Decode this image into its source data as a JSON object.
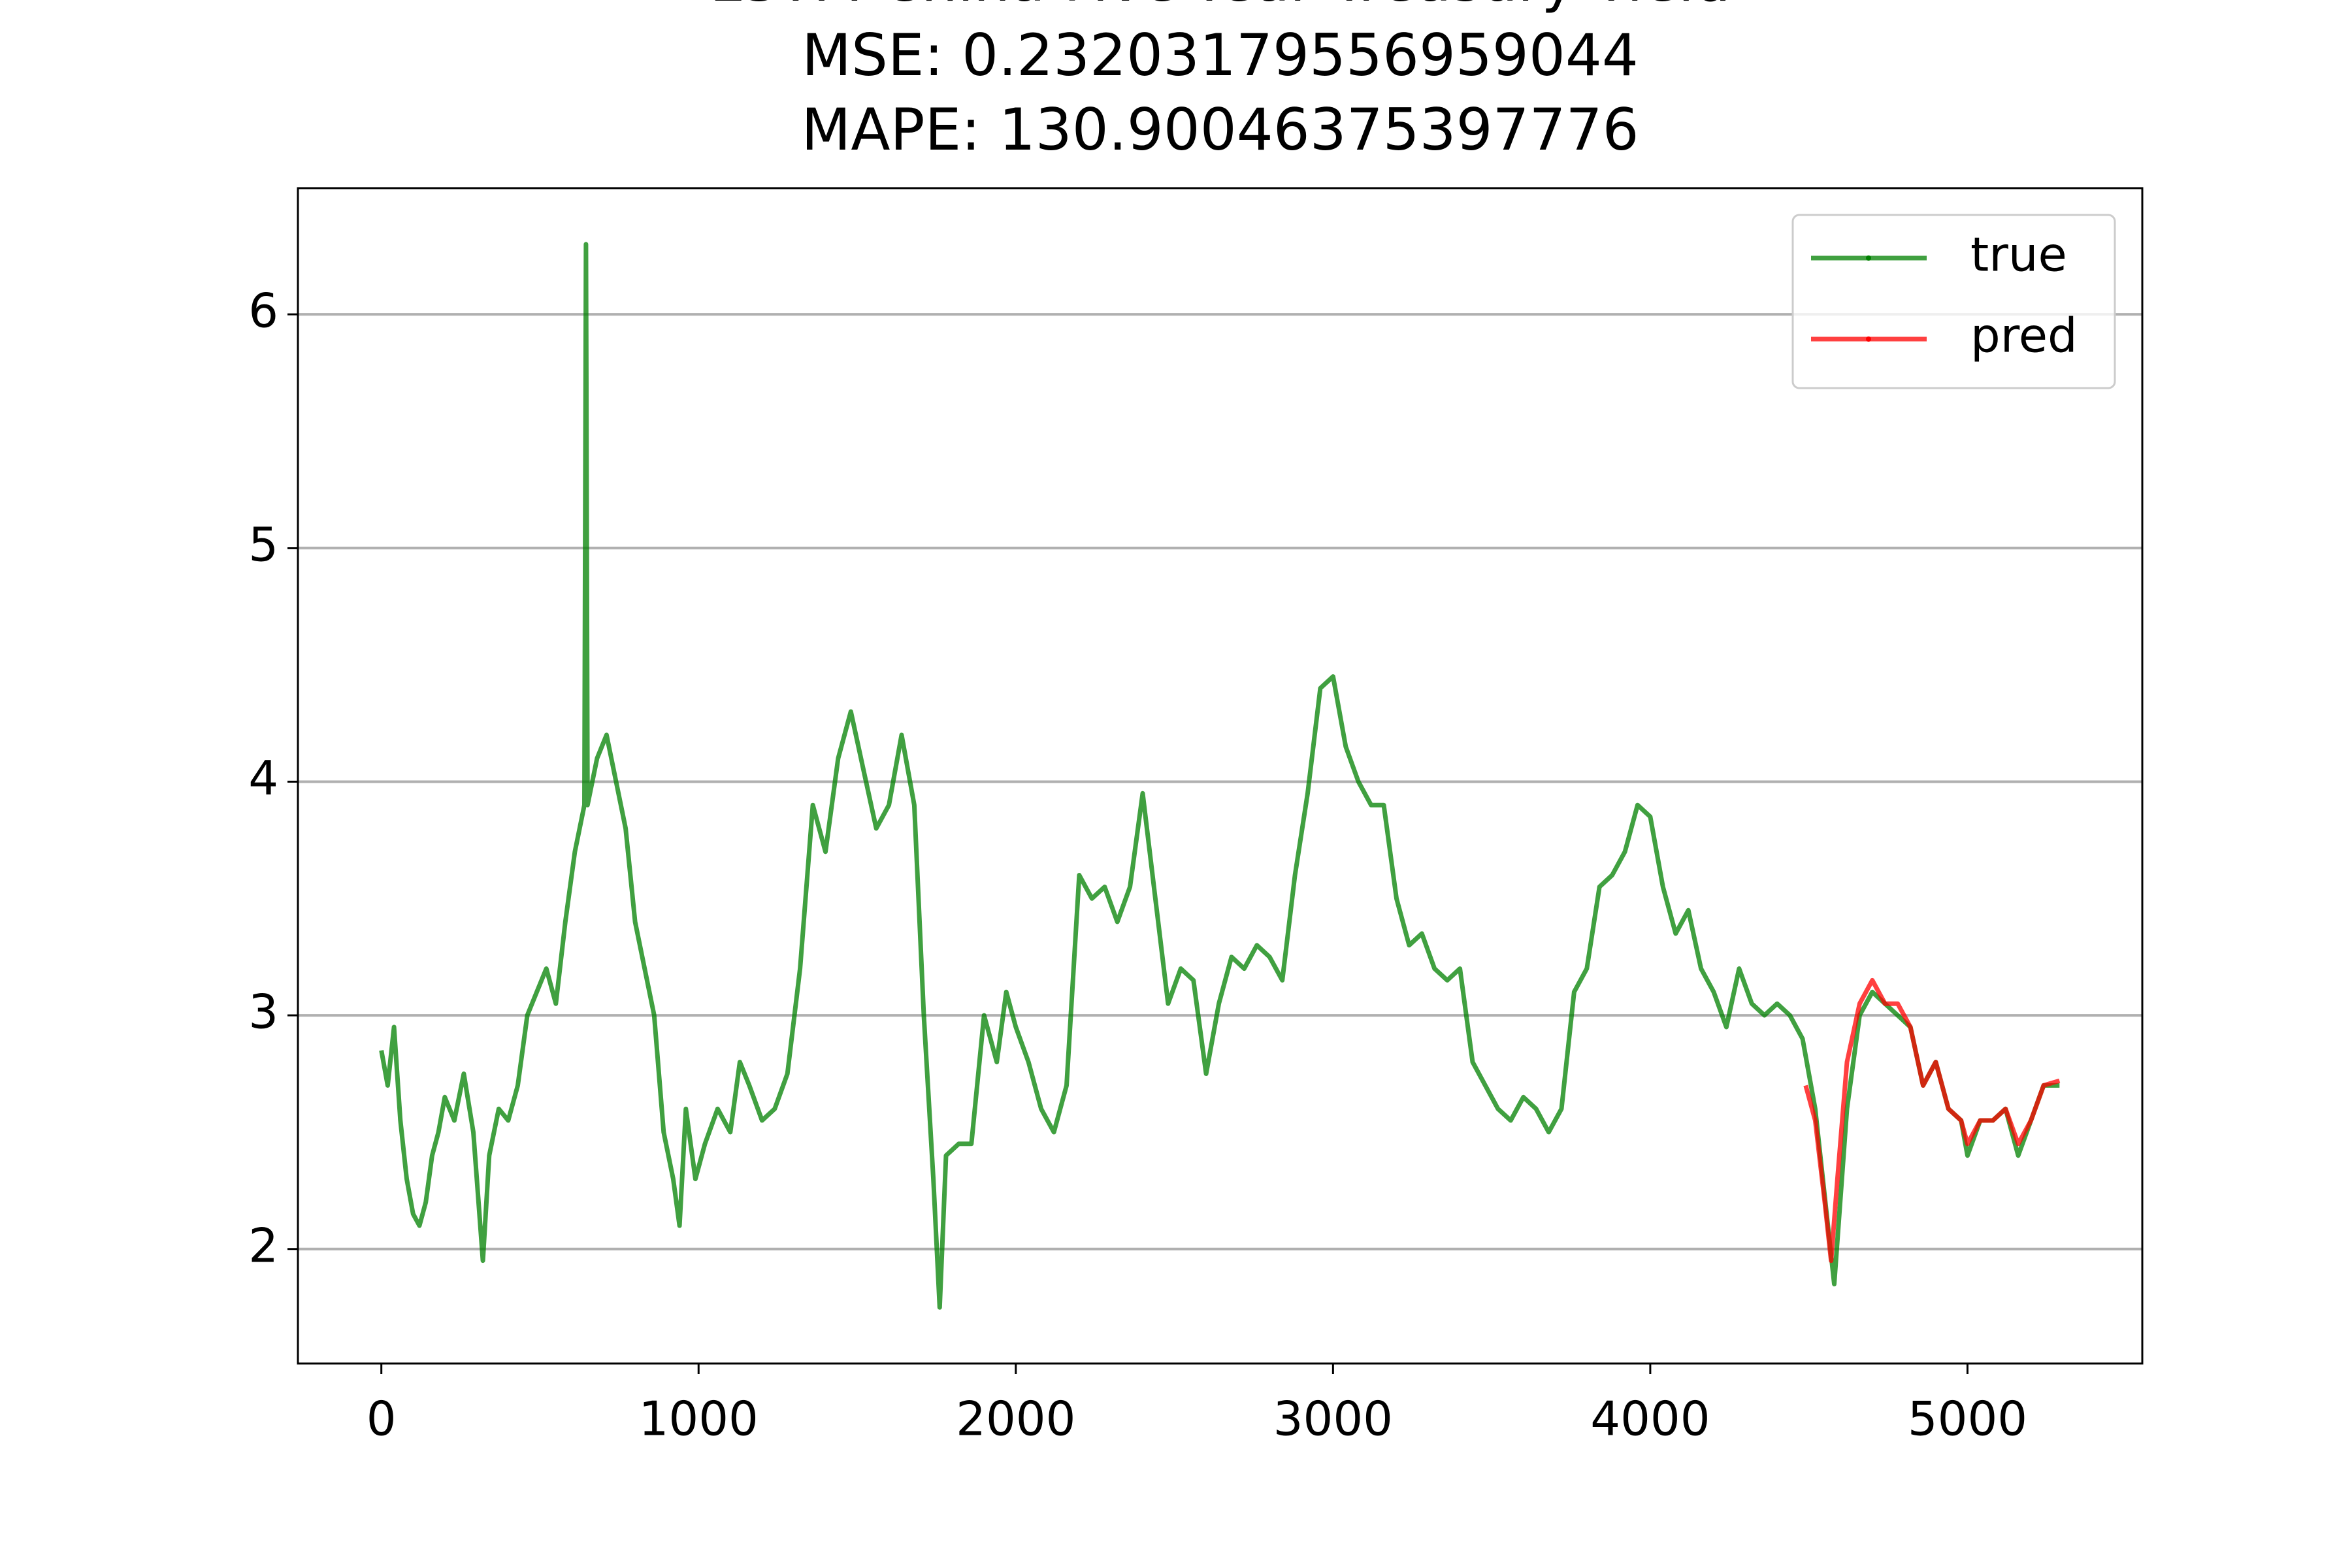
{
  "chart_data": {
    "type": "line",
    "title": [
      "LSTM China Five-Year Treasury Yield",
      "MSE: 0.23203179556959044",
      "MAPE: 130.90046375397776"
    ],
    "series": [
      {
        "name": "true",
        "color": "#008000",
        "x": [
          0,
          20,
          40,
          60,
          80,
          100,
          120,
          140,
          160,
          180,
          200,
          230,
          260,
          290,
          320,
          340,
          370,
          400,
          430,
          460,
          490,
          520,
          550,
          580,
          610,
          640,
          645,
          650,
          680,
          710,
          740,
          770,
          800,
          830,
          860,
          890,
          920,
          940,
          960,
          990,
          1020,
          1060,
          1100,
          1130,
          1160,
          1200,
          1240,
          1280,
          1320,
          1360,
          1400,
          1440,
          1480,
          1520,
          1560,
          1600,
          1640,
          1680,
          1710,
          1740,
          1760,
          1780,
          1820,
          1860,
          1900,
          1940,
          1970,
          2000,
          2040,
          2080,
          2120,
          2160,
          2200,
          2240,
          2280,
          2320,
          2360,
          2400,
          2440,
          2480,
          2520,
          2560,
          2600,
          2640,
          2680,
          2720,
          2760,
          2800,
          2840,
          2880,
          2920,
          2960,
          3000,
          3040,
          3080,
          3120,
          3160,
          3200,
          3240,
          3280,
          3320,
          3360,
          3400,
          3440,
          3480,
          3520,
          3560,
          3600,
          3640,
          3680,
          3720,
          3760,
          3800,
          3840,
          3880,
          3920,
          3960,
          4000,
          4040,
          4080,
          4120,
          4160,
          4200,
          4240,
          4280,
          4320,
          4360,
          4400,
          4440,
          4480,
          4520,
          4560,
          4580,
          4620,
          4660,
          4700,
          4740,
          4780,
          4820,
          4860,
          4900,
          4940,
          4980,
          5000,
          5040,
          5080,
          5120,
          5160,
          5200,
          5240,
          5290
        ],
        "values": [
          2.85,
          2.7,
          2.95,
          2.55,
          2.3,
          2.15,
          2.1,
          2.2,
          2.4,
          2.5,
          2.65,
          2.55,
          2.75,
          2.5,
          1.95,
          2.4,
          2.6,
          2.55,
          2.7,
          3.0,
          3.1,
          3.2,
          3.05,
          3.4,
          3.7,
          3.9,
          6.3,
          3.9,
          4.1,
          4.2,
          4.0,
          3.8,
          3.4,
          3.2,
          3.0,
          2.5,
          2.3,
          2.1,
          2.6,
          2.3,
          2.45,
          2.6,
          2.5,
          2.8,
          2.7,
          2.55,
          2.6,
          2.75,
          3.2,
          3.9,
          3.7,
          4.1,
          4.3,
          4.05,
          3.8,
          3.9,
          4.2,
          3.9,
          3.0,
          2.3,
          1.75,
          2.4,
          2.45,
          2.45,
          3.0,
          2.8,
          3.1,
          2.95,
          2.8,
          2.6,
          2.5,
          2.7,
          3.6,
          3.5,
          3.55,
          3.4,
          3.55,
          3.95,
          3.5,
          3.05,
          3.2,
          3.15,
          2.75,
          3.05,
          3.25,
          3.2,
          3.3,
          3.25,
          3.15,
          3.6,
          3.95,
          4.4,
          4.45,
          4.15,
          4.0,
          3.9,
          3.9,
          3.5,
          3.3,
          3.35,
          3.2,
          3.15,
          3.2,
          2.8,
          2.7,
          2.6,
          2.55,
          2.65,
          2.6,
          2.5,
          2.6,
          3.1,
          3.2,
          3.55,
          3.6,
          3.7,
          3.9,
          3.85,
          3.55,
          3.35,
          3.45,
          3.2,
          3.1,
          2.95,
          3.2,
          3.05,
          3.0,
          3.05,
          3.0,
          2.9,
          2.6,
          2.1,
          1.85,
          2.6,
          3.0,
          3.1,
          3.05,
          3.0,
          2.95,
          2.7,
          2.8,
          2.6,
          2.55,
          2.4,
          2.55,
          2.55,
          2.6,
          2.4,
          2.55,
          2.7,
          2.7
        ]
      },
      {
        "name": "pred",
        "color": "#ff0000",
        "x": [
          4490,
          4520,
          4550,
          4570,
          4590,
          4620,
          4660,
          4700,
          4740,
          4780,
          4820,
          4860,
          4900,
          4940,
          4980,
          5000,
          5040,
          5080,
          5120,
          5160,
          5200,
          5240,
          5290
        ],
        "values": [
          2.7,
          2.55,
          2.2,
          1.95,
          2.3,
          2.8,
          3.05,
          3.15,
          3.05,
          3.05,
          2.95,
          2.7,
          2.8,
          2.6,
          2.55,
          2.45,
          2.55,
          2.55,
          2.6,
          2.45,
          2.55,
          2.7,
          2.72
        ]
      }
    ],
    "xlim": [
      -263,
      5551
    ],
    "ylim": [
      1.51,
      6.54
    ],
    "xticks": [
      0,
      1000,
      2000,
      3000,
      4000,
      5000
    ],
    "yticks": [
      2,
      3,
      4,
      5,
      6
    ],
    "grid": "y",
    "legend": "upper right"
  }
}
